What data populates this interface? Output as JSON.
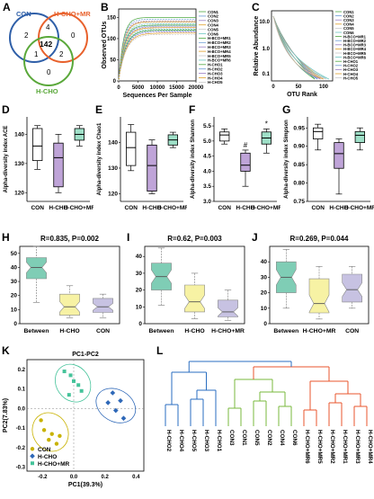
{
  "panels": {
    "A": {
      "label": "A",
      "sets": [
        "CON",
        "H-CHO+MR",
        "H-CHO"
      ],
      "regions": {
        "con_only": "2",
        "mr_only": "0",
        "hcho_only": "0",
        "con_mr": "4",
        "con_hcho": "1",
        "mr_hcho": "2",
        "all": "142"
      },
      "colors": {
        "CON": "#2f5fa8",
        "H-CHO+MR": "#e8612c",
        "H-CHO": "#5aa83a"
      }
    },
    "B": {
      "label": "B",
      "chart_data": {
        "type": "line",
        "xlabel": "Sequences Per Sample",
        "ylabel": "Observed OTUs",
        "xticks": [
          "0",
          "5000",
          "10000",
          "15000",
          "20000"
        ],
        "yticks": [
          "0",
          "50",
          "100",
          "150"
        ],
        "xlim": [
          0,
          20000
        ],
        "ylim": [
          0,
          170
        ],
        "legend": [
          "CON1",
          "CON2",
          "CON3",
          "CON4",
          "CON5",
          "CON6",
          "H-BCO+MR1",
          "H-BCO+MR2",
          "H-BCO+MR3",
          "H-BCO+MR4",
          "H-BCO+MR5",
          "H-BCO+MR6",
          "H-CHO1",
          "H-CHO2",
          "H-CHO3",
          "H-CHO4",
          "H-CHO5"
        ],
        "series_final": [
          150,
          146,
          142,
          140,
          138,
          135,
          132,
          130,
          128,
          126,
          124,
          122,
          120,
          118,
          116,
          113,
          110
        ]
      }
    },
    "C": {
      "label": "C",
      "chart_data": {
        "type": "line",
        "xlabel": "OTU Rank",
        "ylabel": "Relative Abundance",
        "xticks": [
          "0",
          "50",
          "100"
        ],
        "yticks": [
          "10.0",
          "1.0",
          "0.1"
        ],
        "legend": [
          "CON1",
          "CON2",
          "CON3",
          "CON4",
          "CON5",
          "CON6",
          "H-BCO+MR1",
          "H-BCO+MR2",
          "H-BCO+MR3",
          "H-BCO+MR4",
          "H-BCO+MR5",
          "H-BCO+MR6",
          "H-CHO1",
          "H-CHO2",
          "H-CHO3",
          "H-CHO4",
          "H-CHO5"
        ]
      }
    },
    "D": {
      "label": "D",
      "chart_data": {
        "type": "box",
        "ylabel": "Alpha-diversity index ACE",
        "categories": [
          "CON",
          "H-CHO",
          "H-CHO+MR"
        ],
        "yticks": [
          "120",
          "130",
          "140"
        ],
        "ylim": [
          117,
          146
        ],
        "boxes": [
          {
            "min": 128,
            "q1": 131,
            "med": 136,
            "q3": 142,
            "max": 143
          },
          {
            "min": 120,
            "q1": 122,
            "med": 132,
            "q3": 137,
            "max": 140
          },
          {
            "min": 136,
            "q1": 138,
            "med": 140,
            "q3": 142,
            "max": 143
          }
        ],
        "colors": [
          "#ffffff",
          "#bfa4d8",
          "#9fe0c8"
        ],
        "sig": [
          "",
          "",
          ""
        ]
      }
    },
    "E": {
      "label": "E",
      "chart_data": {
        "type": "box",
        "ylabel": "Alpha-diversity index Chao1",
        "categories": [
          "CON",
          "H-CHO",
          "H-CHO+MR"
        ],
        "yticks": [
          "120",
          "130",
          "140"
        ],
        "ylim": [
          117,
          150
        ],
        "boxes": [
          {
            "min": 129,
            "q1": 131,
            "med": 138,
            "q3": 144,
            "max": 147
          },
          {
            "min": 120,
            "q1": 121,
            "med": 131,
            "q3": 139,
            "max": 141
          },
          {
            "min": 138,
            "q1": 139,
            "med": 141,
            "q3": 143,
            "max": 144
          }
        ],
        "colors": [
          "#ffffff",
          "#bfa4d8",
          "#9fe0c8"
        ],
        "sig": [
          "",
          "",
          ""
        ]
      }
    },
    "F": {
      "label": "F",
      "chart_data": {
        "type": "box",
        "ylabel": "Alpha-diversity index Shannon",
        "categories": [
          "CON",
          "H-CHO",
          "H-CHO+MR"
        ],
        "yticks": [
          "3.0",
          "3.5",
          "4.0",
          "4.5",
          "5.0",
          "5.5"
        ],
        "ylim": [
          3.0,
          5.8
        ],
        "boxes": [
          {
            "min": 4.9,
            "q1": 5.0,
            "med": 5.2,
            "q3": 5.3,
            "max": 5.4
          },
          {
            "min": 3.5,
            "q1": 4.0,
            "med": 4.2,
            "q3": 4.6,
            "max": 4.7
          },
          {
            "min": 4.6,
            "q1": 4.9,
            "med": 5.1,
            "q3": 5.3,
            "max": 5.4
          }
        ],
        "colors": [
          "#ffffff",
          "#bfa4d8",
          "#9fe0c8"
        ],
        "sig": [
          "",
          "#",
          "*"
        ]
      }
    },
    "G": {
      "label": "G",
      "chart_data": {
        "type": "box",
        "ylabel": "Alpha-diversity index Simpson",
        "categories": [
          "CON",
          "H-CHO",
          "H-CHO+MR"
        ],
        "yticks": [
          "0.75",
          "0.80",
          "0.85",
          "0.90",
          "0.95"
        ],
        "ylim": [
          0.75,
          0.98
        ],
        "boxes": [
          {
            "min": 0.89,
            "q1": 0.92,
            "med": 0.94,
            "q3": 0.95,
            "max": 0.96
          },
          {
            "min": 0.77,
            "q1": 0.84,
            "med": 0.88,
            "q3": 0.91,
            "max": 0.92
          },
          {
            "min": 0.89,
            "q1": 0.91,
            "med": 0.93,
            "q3": 0.94,
            "max": 0.95
          }
        ],
        "colors": [
          "#ffffff",
          "#bfa4d8",
          "#9fe0c8"
        ],
        "sig": [
          "",
          "",
          ""
        ]
      }
    },
    "H": {
      "label": "H",
      "chart_data": {
        "type": "box",
        "title": "R=0.835, P=0.002",
        "categories": [
          "Between",
          "H-CHO",
          "CON"
        ],
        "yticks": [
          "0",
          "10",
          "20",
          "30",
          "40",
          "50"
        ],
        "ylim": [
          0,
          55
        ],
        "boxes": [
          {
            "min": 15,
            "q1": 32,
            "med": 40,
            "q3": 47,
            "max": 55
          },
          {
            "min": 4,
            "q1": 6,
            "med": 12,
            "q3": 21,
            "max": 27
          },
          {
            "min": 4,
            "q1": 8,
            "med": 12,
            "q3": 18,
            "max": 21
          }
        ],
        "colors": [
          "#7fcdb5",
          "#f7f2a4",
          "#c7c2e2"
        ]
      }
    },
    "I": {
      "label": "I",
      "chart_data": {
        "type": "box",
        "title": "R=0.62, P=0.003",
        "categories": [
          "Between",
          "H-CHO",
          "H-CHO+MR"
        ],
        "yticks": [
          "0",
          "10",
          "20",
          "30",
          "40"
        ],
        "ylim": [
          0,
          46
        ],
        "boxes": [
          {
            "min": 11,
            "q1": 20,
            "med": 28,
            "q3": 36,
            "max": 45
          },
          {
            "min": 3,
            "q1": 7,
            "med": 13,
            "q3": 23,
            "max": 30
          },
          {
            "min": 2,
            "q1": 4,
            "med": 7,
            "q3": 14,
            "max": 20
          }
        ],
        "colors": [
          "#7fcdb5",
          "#f7f2a4",
          "#c7c2e2"
        ]
      }
    },
    "J": {
      "label": "J",
      "chart_data": {
        "type": "box",
        "title": "R=0.269, P=0.044",
        "categories": [
          "Between",
          "H-CHO+MR",
          "CON"
        ],
        "yticks": [
          "0",
          "10",
          "20",
          "30",
          "40"
        ],
        "ylim": [
          0,
          50
        ],
        "boxes": [
          {
            "min": 10,
            "q1": 20,
            "med": 30,
            "q3": 40,
            "max": 48
          },
          {
            "min": 3,
            "q1": 7,
            "med": 13,
            "q3": 29,
            "max": 37
          },
          {
            "min": 10,
            "q1": 14,
            "med": 22,
            "q3": 32,
            "max": 37
          }
        ],
        "colors": [
          "#7fcdb5",
          "#f7f2a4",
          "#c7c2e2"
        ]
      }
    },
    "K": {
      "label": "K",
      "chart_data": {
        "type": "scatter",
        "title": "PC1-PC2",
        "xlabel": "PC1(39.3%)",
        "ylabel": "PC2(7.83%)",
        "xticks": [
          "-0.2",
          "0.0",
          "0.2",
          "0.4"
        ],
        "yticks": [
          "-0.3",
          "-0.2",
          "-0.1",
          "0.0",
          "0.1",
          "0.2"
        ],
        "xlim": [
          -0.3,
          0.45
        ],
        "ylim": [
          -0.32,
          0.25
        ],
        "legend": [
          "CON",
          "H-CHO",
          "H-CHO+MR"
        ],
        "series": [
          {
            "name": "CON",
            "color": "#c8b200",
            "points": [
              [
                -0.21,
                -0.06
              ],
              [
                -0.19,
                -0.11
              ],
              [
                -0.14,
                -0.13
              ],
              [
                -0.16,
                -0.16
              ],
              [
                -0.11,
                -0.18
              ],
              [
                -0.09,
                -0.14
              ]
            ]
          },
          {
            "name": "H-CHO",
            "color": "#2e68b8",
            "points": [
              [
                0.22,
                0.03
              ],
              [
                0.25,
                0.08
              ],
              [
                0.27,
                -0.01
              ],
              [
                0.3,
                0.04
              ],
              [
                0.32,
                -0.05
              ]
            ]
          },
          {
            "name": "H-CHO+MR",
            "color": "#45c39a",
            "points": [
              [
                -0.06,
                0.19
              ],
              [
                -0.02,
                0.17
              ],
              [
                0.0,
                0.14
              ],
              [
                0.03,
                0.12
              ],
              [
                0.05,
                0.09
              ],
              [
                -0.03,
                0.07
              ]
            ]
          }
        ]
      }
    },
    "L": {
      "label": "L",
      "leaves": [
        {
          "name": "H-CHO2",
          "group": 0
        },
        {
          "name": "H-CHO4",
          "group": 0
        },
        {
          "name": "H-CHO5",
          "group": 0
        },
        {
          "name": "H-CHO3",
          "group": 0
        },
        {
          "name": "H-CHO1",
          "group": 0
        },
        {
          "name": "CON3",
          "group": 1
        },
        {
          "name": "CON1",
          "group": 1
        },
        {
          "name": "CON5",
          "group": 1
        },
        {
          "name": "CON2",
          "group": 1
        },
        {
          "name": "CON4",
          "group": 1
        },
        {
          "name": "CON6",
          "group": 1
        },
        {
          "name": "H-CHO+MR6",
          "group": 2
        },
        {
          "name": "H-CHO+MR5",
          "group": 2
        },
        {
          "name": "H-CHO+MR2",
          "group": 2
        },
        {
          "name": "H-CHO+MR1",
          "group": 2
        },
        {
          "name": "H-CHO+MR3",
          "group": 2
        },
        {
          "name": "H-CHO+MR4",
          "group": 2
        }
      ],
      "colors": [
        "#2a6ec0",
        "#78b83c",
        "#e8552c"
      ]
    }
  },
  "colors": {
    "line_palette": [
      "#4fa843",
      "#6b9bd5",
      "#9b7fc4",
      "#e0a02a",
      "#c9c9c9",
      "#6cc7c2"
    ]
  }
}
